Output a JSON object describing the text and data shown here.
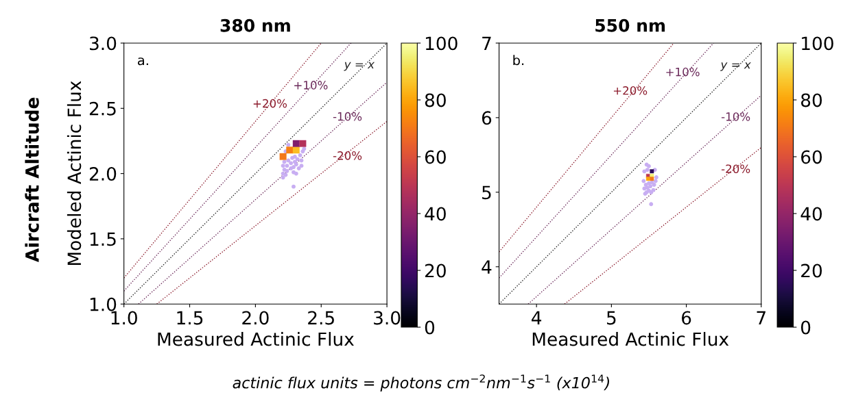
{
  "chart_data": [
    {
      "type": "scatter",
      "title": "380 nm",
      "xlabel": "Measured Actinic Flux",
      "ylabel": "Modeled Actinic Flux",
      "xlim": [
        1.0,
        3.0
      ],
      "ylim": [
        1.0,
        3.0
      ],
      "xticks": [
        {
          "value": 1.0,
          "label": "1.0"
        },
        {
          "value": 1.5,
          "label": "1.5"
        },
        {
          "value": 2.0,
          "label": "2.0"
        },
        {
          "value": 2.5,
          "label": "2.5"
        },
        {
          "value": 3.0,
          "label": "3.0"
        }
      ],
      "yticks": [
        {
          "value": 1.0,
          "label": "1.0"
        },
        {
          "value": 1.5,
          "label": "1.5"
        },
        {
          "value": 2.0,
          "label": "2.0"
        },
        {
          "value": 2.5,
          "label": "2.5"
        },
        {
          "value": 3.0,
          "label": "3.0"
        }
      ],
      "clim": [
        0,
        100
      ],
      "cticks": [
        0,
        20,
        40,
        60,
        80,
        100
      ],
      "grid": false,
      "legend": false,
      "series": [
        {
          "type": "line",
          "color": "#8b1a2b",
          "line_style": "dotted",
          "x": [
            1.0,
            2.5
          ],
          "values": [
            1.2,
            3.0
          ]
        },
        {
          "type": "line",
          "color": "#6b2a5a",
          "line_style": "dotted",
          "x": [
            1.0,
            2.727
          ],
          "values": [
            1.1,
            3.0
          ]
        },
        {
          "type": "line",
          "color": "#222222",
          "line_style": "dotted",
          "x": [
            1.0,
            3.0
          ],
          "values": [
            1.0,
            3.0
          ]
        },
        {
          "type": "line",
          "color": "#6b2a5a",
          "line_style": "dotted",
          "x": [
            1.111,
            3.0
          ],
          "values": [
            1.0,
            2.7
          ]
        },
        {
          "type": "line",
          "color": "#8b1a2b",
          "line_style": "dotted",
          "x": [
            1.25,
            3.0
          ],
          "values": [
            1.0,
            2.4
          ]
        },
        {
          "type": "scatter",
          "color": "#c8aef2",
          "marker": "circle",
          "x": [
            2.21,
            2.21,
            2.22,
            2.21,
            2.22,
            2.23,
            2.24,
            2.24,
            2.25,
            2.27,
            2.27,
            2.28,
            2.29,
            2.29,
            2.3,
            2.3,
            2.31,
            2.31,
            2.32,
            2.33,
            2.34,
            2.35,
            2.35,
            2.36,
            2.37,
            2.29,
            2.23,
            2.25
          ],
          "values": [
            1.97,
            2.0,
            2.03,
            2.06,
            2.09,
            1.99,
            2.02,
            2.06,
            2.1,
            2.04,
            2.08,
            2.12,
            2.01,
            2.05,
            2.09,
            2.13,
            2.0,
            2.07,
            2.11,
            2.04,
            2.14,
            2.1,
            2.06,
            2.17,
            2.19,
            1.9,
            2.17,
            2.22
          ]
        },
        {
          "type": "scatter",
          "marker": "square",
          "x": [
            2.21,
            2.26,
            2.31,
            2.31,
            2.36
          ],
          "values": [
            2.13,
            2.18,
            2.18,
            2.23,
            2.23
          ],
          "cvalues": [
            70,
            72,
            85,
            35,
            48
          ],
          "colors": [
            "#f57d15",
            "#f8850f",
            "#fbb61a",
            "#8a226a",
            "#b73779"
          ]
        }
      ],
      "annotations": [
        "a.",
        "Aircraft Altitude",
        {
          "text": "+20%",
          "x": 2.11,
          "y": 2.53
        },
        {
          "text": "+10%",
          "x": 2.42,
          "y": 2.67
        },
        {
          "text": "y = x",
          "x": 2.79,
          "y": 2.83
        },
        {
          "text": "-10%",
          "x": 2.7,
          "y": 2.43
        },
        {
          "text": "-20%",
          "x": 2.7,
          "y": 2.13
        }
      ]
    },
    {
      "type": "scatter",
      "title": "550 nm",
      "xlabel": "Measured Actinic Flux",
      "xlim": [
        3.5,
        7.0
      ],
      "ylim": [
        3.5,
        7.0
      ],
      "xticks": [
        4,
        5,
        6,
        7
      ],
      "yticks": [
        4,
        5,
        6,
        7
      ],
      "clim": [
        0,
        100
      ],
      "cticks": [
        0,
        20,
        40,
        60,
        80,
        100
      ],
      "grid": false,
      "legend": false,
      "series": [
        {
          "type": "line",
          "color": "#8b1a2b",
          "line_style": "dotted",
          "x": [
            3.5,
            5.833
          ],
          "values": [
            4.2,
            7.0
          ]
        },
        {
          "type": "line",
          "color": "#6b2a5a",
          "line_style": "dotted",
          "x": [
            3.5,
            6.364
          ],
          "values": [
            3.85,
            7.0
          ]
        },
        {
          "type": "line",
          "color": "#222222",
          "line_style": "dotted",
          "x": [
            3.5,
            7.0
          ],
          "values": [
            3.5,
            7.0
          ]
        },
        {
          "type": "line",
          "color": "#6b2a5a",
          "line_style": "dotted",
          "x": [
            3.889,
            7.0
          ],
          "values": [
            3.5,
            6.3
          ]
        },
        {
          "type": "line",
          "color": "#8b1a2b",
          "line_style": "dotted",
          "x": [
            4.375,
            7.0
          ],
          "values": [
            3.5,
            5.6
          ]
        },
        {
          "type": "scatter",
          "color": "#c8aef2",
          "marker": "circle",
          "x": [
            5.45,
            5.47,
            5.5,
            5.53,
            5.56,
            5.44,
            5.48,
            5.52,
            5.57,
            5.46,
            5.5,
            5.54,
            5.59,
            5.43,
            5.6,
            5.48,
            5.5,
            5.47,
            5.53,
            5.58,
            5.44
          ],
          "values": [
            4.98,
            5.0,
            5.02,
            5.0,
            5.03,
            5.05,
            5.06,
            5.08,
            5.1,
            5.1,
            5.12,
            5.13,
            5.15,
            5.15,
            5.2,
            5.3,
            5.35,
            5.37,
            4.84,
            5.3,
            5.28
          ]
        },
        {
          "type": "scatter",
          "marker": "square",
          "x": [
            5.49,
            5.54,
            5.54,
            5.49,
            5.54
          ],
          "values": [
            5.22,
            5.28,
            5.22,
            5.18,
            5.18
          ],
          "cvalues": [
            50,
            15,
            95,
            80,
            70
          ],
          "colors": [
            "#cb4149",
            "#2a0b57",
            "#f6e85f",
            "#fca50a",
            "#f57d15"
          ]
        }
      ],
      "annotations": [
        "b.",
        "actinic flux units = photons cm$^{−2}$nm$^{−1}$s$^{−1}$ (x10$^{14}$)",
        {
          "text": "+20%",
          "x": 5.25,
          "y": 6.35
        },
        {
          "text": "+10%",
          "x": 5.95,
          "y": 6.6
        },
        {
          "text": "y = x",
          "x": 6.66,
          "y": 6.7
        },
        {
          "text": "-10%",
          "x": 6.66,
          "y": 6.0
        },
        {
          "text": "-20%",
          "x": 6.66,
          "y": 5.3
        }
      ]
    }
  ]
}
